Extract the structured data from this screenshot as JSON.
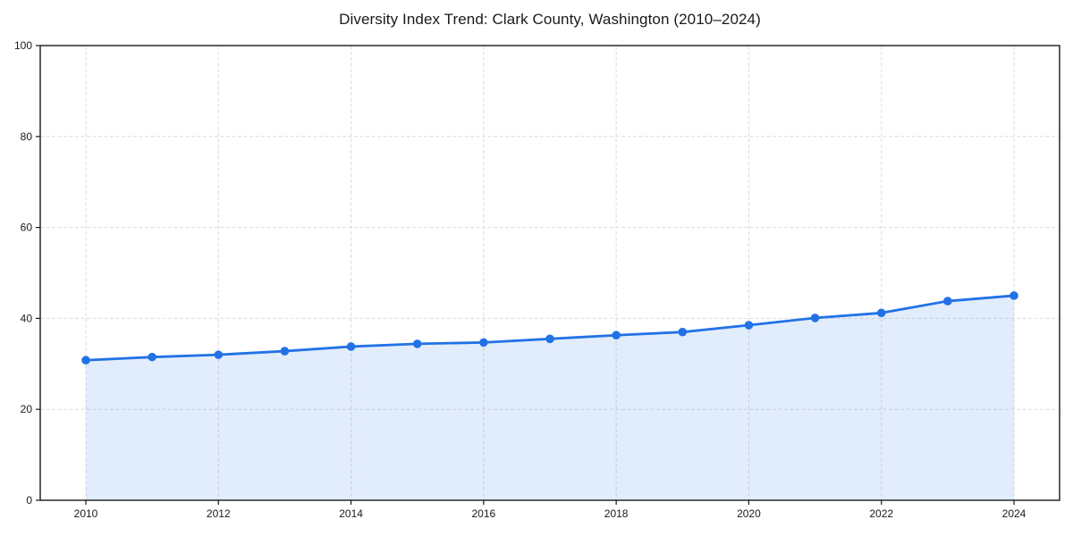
{
  "chart_data": {
    "type": "line",
    "title": "Diversity Index Trend: Clark County, Washington (2010–2024)",
    "x": [
      2010,
      2011,
      2012,
      2013,
      2014,
      2015,
      2016,
      2017,
      2018,
      2019,
      2020,
      2021,
      2022,
      2023,
      2024
    ],
    "series": [
      {
        "name": "Diversity Index",
        "values": [
          30.8,
          31.5,
          32.0,
          32.8,
          33.8,
          34.4,
          34.7,
          35.5,
          36.3,
          37.0,
          38.5,
          40.1,
          41.2,
          43.8,
          45.0
        ]
      }
    ],
    "xlabel": "",
    "ylabel": "",
    "ylim": [
      0,
      100
    ],
    "yticks": [
      0,
      20,
      40,
      60,
      80,
      100
    ],
    "xticks": [
      2010,
      2012,
      2014,
      2016,
      2018,
      2020,
      2022,
      2024
    ],
    "grid": true,
    "grid_style": "dashed",
    "legend_position": "none",
    "colors": {
      "line": "#2272e6",
      "marker": "#2272e6",
      "area_fill": "#2272e6",
      "area_opacity": 0.13,
      "gridline": "#dcdcdc",
      "spine": "#1a1a1a",
      "tick_label": "#1a1a1a",
      "title": "#1a1a1a",
      "background": "#ffffff"
    },
    "marker_shape": "circle",
    "fill_under_line": true
  }
}
